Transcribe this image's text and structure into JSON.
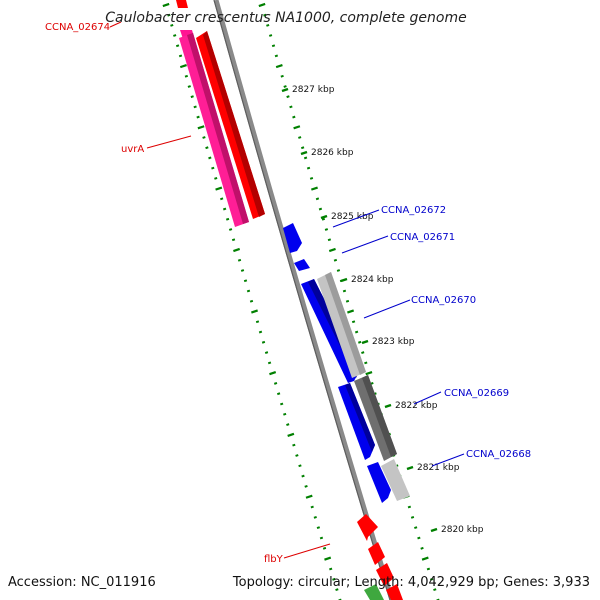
{
  "title": "Caulobacter crescentus NA1000, complete genome",
  "footer": {
    "accession": "Accession: NC_011916",
    "stats": "Topology: circular; Length: 4,042,929 bp; Genes: 3,933"
  },
  "colors": {
    "strand_forward": "#ff0000",
    "strand_reverse": "#0000ee",
    "highlight_pink": "#ff1493",
    "grey_light": "#c0c0c0",
    "grey_dark": "#707070",
    "tick_green": "#008000",
    "backbone": "#808080",
    "label_red": "#dd0000",
    "label_blue": "#0000cc"
  },
  "kbp_ticks": [
    "2827 kbp",
    "2826 kbp",
    "2825 kbp",
    "2824 kbp",
    "2823 kbp",
    "2822 kbp",
    "2821 kbp",
    "2820 kbp"
  ],
  "gene_labels": {
    "ccna_02674": "CCNA_02674",
    "uvra": "uvrA",
    "ccna_02672": "CCNA_02672",
    "ccna_02671": "CCNA_02671",
    "ccna_02670": "CCNA_02670",
    "ccna_02669": "CCNA_02669",
    "ccna_02668": "CCNA_02668",
    "flby": "flbY"
  }
}
